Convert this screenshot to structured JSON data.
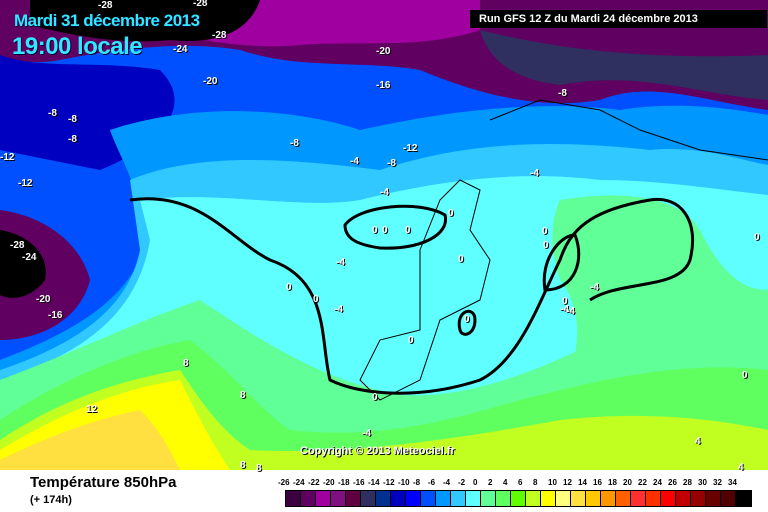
{
  "header": {
    "date": "Mardi 31 décembre 2013",
    "time": "19:00 locale",
    "run": "Run GFS 12 Z du Mardi 24 décembre 2013"
  },
  "copyright": "Copyright © 2013 Meteociel.fr",
  "footer": {
    "variable": "Température 850hPa",
    "lead": "(+ 174h)"
  },
  "legend": {
    "labels": [
      "-26",
      "-24",
      "-22",
      "-20",
      "-18",
      "-16",
      "-14",
      "-12",
      "-10",
      "-8",
      "-6",
      "-4",
      "-2",
      "0",
      "2",
      "4",
      "6",
      "8",
      "10",
      "12",
      "14",
      "16",
      "18",
      "20",
      "22",
      "24",
      "26",
      "28",
      "30",
      "32",
      "34"
    ],
    "colors": [
      "#3a0040",
      "#600060",
      "#a000a0",
      "#801080",
      "#600040",
      "#303060",
      "#003090",
      "#0000c0",
      "#0000ff",
      "#0050ff",
      "#0098ff",
      "#30c8ff",
      "#60ffff",
      "#60ff98",
      "#60ff60",
      "#60ff00",
      "#c0ff20",
      "#ffff00",
      "#ffff80",
      "#ffe040",
      "#ffc800",
      "#ff9800",
      "#ff6000",
      "#ff3030",
      "#ff3000",
      "#ff0000",
      "#c00000",
      "#980000",
      "#680000",
      "#500000",
      "#000000"
    ]
  },
  "contour_labels": [
    "-28",
    "-28",
    "-28",
    "-24",
    "-20",
    "-20",
    "-16",
    "-8",
    "-8",
    "-8",
    "-8",
    "-12",
    "-12",
    "-12",
    "-8",
    "-4",
    "-8",
    "-4",
    "-4",
    "-28",
    "-24",
    "-20",
    "-16",
    "0",
    "0",
    "0",
    "0",
    "-4",
    "0",
    "0",
    "-4",
    "0",
    "0",
    "0",
    "0",
    "0",
    "0",
    "-4",
    "-4",
    "0",
    "0",
    "8",
    "8",
    "12",
    "-4",
    "8",
    "8",
    "4",
    "4",
    "0",
    "-4"
  ]
}
